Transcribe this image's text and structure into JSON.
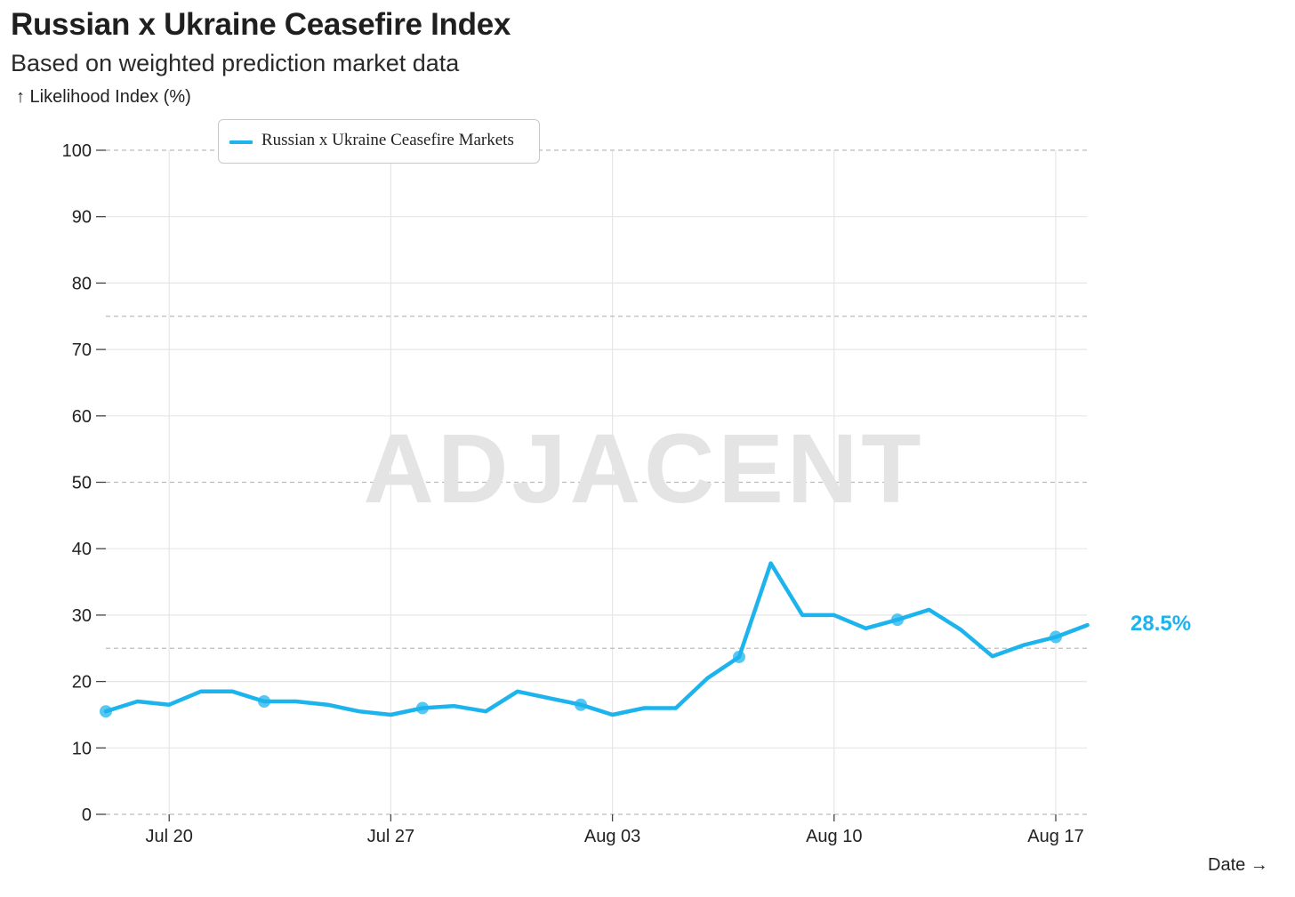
{
  "header": {
    "title": "Russian x Ukraine Ceasefire Index",
    "subtitle": "Based on weighted prediction market data"
  },
  "watermark": "ADJACENT",
  "colors": {
    "series": "#1db4ee",
    "grid": "#e6e6e6",
    "dashed": "#bcbcbc"
  },
  "chart_data": {
    "type": "line",
    "title": "Russian x Ukraine Ceasefire Index",
    "subtitle": "Based on weighted prediction market data",
    "ylabel": "↑ Likelihood Index (%)",
    "xlabel": "Date →",
    "ylim": [
      0,
      100
    ],
    "xlim": [
      "Jul 18",
      "Aug 18"
    ],
    "y_ticks": [
      0,
      10,
      20,
      30,
      40,
      50,
      60,
      70,
      80,
      90,
      100
    ],
    "dashed_y_lines": [
      25,
      50,
      75,
      100
    ],
    "x_ticks": [
      {
        "label": "Jul 20",
        "day": 2
      },
      {
        "label": "Jul 27",
        "day": 9
      },
      {
        "label": "Aug 03",
        "day": 16
      },
      {
        "label": "Aug 10",
        "day": 23
      },
      {
        "label": "Aug 17",
        "day": 30
      }
    ],
    "grid": true,
    "legend_position": "top-left",
    "series": [
      {
        "name": "Russian x Ukraine Ceasefire Markets",
        "x": [
          0,
          1,
          2,
          3,
          4,
          5,
          6,
          7,
          8,
          9,
          10,
          11,
          12,
          13,
          14,
          15,
          16,
          17,
          18,
          19,
          20,
          21,
          22,
          23,
          24,
          25,
          26,
          27,
          28,
          29,
          30,
          31
        ],
        "y": [
          15.5,
          17,
          16.5,
          18.5,
          18.5,
          17,
          17,
          16.5,
          15.5,
          15,
          16,
          16.3,
          15.5,
          18.5,
          17.5,
          16.5,
          15,
          16,
          16,
          20.5,
          23.7,
          37.8,
          30,
          30,
          28,
          29.3,
          30.8,
          27.8,
          23.8,
          25.5,
          26.7,
          28.5
        ],
        "markers": [
          0,
          5,
          10,
          15,
          20,
          25,
          30
        ],
        "end_label": "28.5%"
      }
    ]
  }
}
